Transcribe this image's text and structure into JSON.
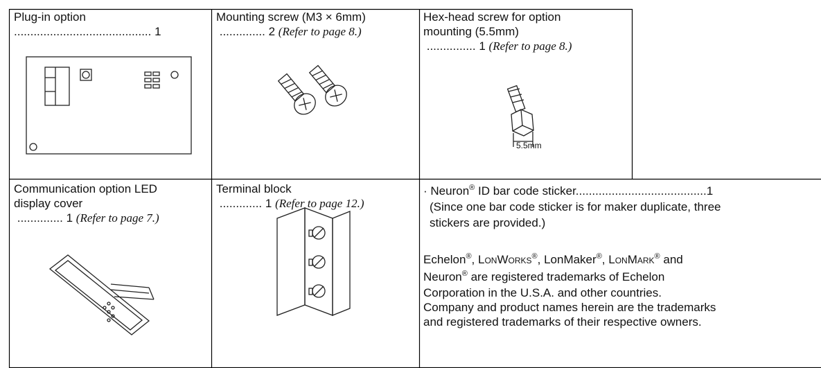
{
  "items": [
    {
      "name": "Plug-in option",
      "dots": "..........................................",
      "qty": "1"
    },
    {
      "name": "Mounting screw (M3 × 6mm)",
      "dots": "..............",
      "qty": "2",
      "ref": "(Refer to page 8.)"
    },
    {
      "name_lines": [
        "Hex-head screw for option",
        "mounting (5.5mm)"
      ],
      "dots": "...............",
      "qty": "1",
      "ref": "(Refer to page 8.)",
      "dimension": "5.5mm"
    },
    {
      "name_lines": [
        "Communication option LED",
        "display cover"
      ],
      "dots": "..............",
      "qty": "1",
      "ref": "(Refer to page 7.)"
    },
    {
      "name": "Terminal block",
      "dots": ".............",
      "qty": "1",
      "ref": "(Refer to page 12.)"
    }
  ],
  "sticker": {
    "bullet": "·",
    "name": "Neuron",
    "mark": "®",
    "rest": " ID bar code sticker",
    "dots": "........................................",
    "qty": "1",
    "note_lines": [
      "(Since one bar code sticker is for maker duplicate, three",
      "stickers are provided.)"
    ]
  },
  "trademarks": {
    "line1": [
      "Echelon",
      "®",
      ", ",
      "LonWorks",
      "®",
      ", ",
      "LonMaker",
      "®",
      ", ",
      "LonMark",
      "®",
      " and"
    ],
    "line2": [
      "Neuron",
      "®",
      " are registered trademarks of Echelon"
    ],
    "lines": [
      "Corporation in the U.S.A. and other countries.",
      "Company and product names herein are the trademarks",
      "and registered trademarks of their respective owners."
    ]
  }
}
